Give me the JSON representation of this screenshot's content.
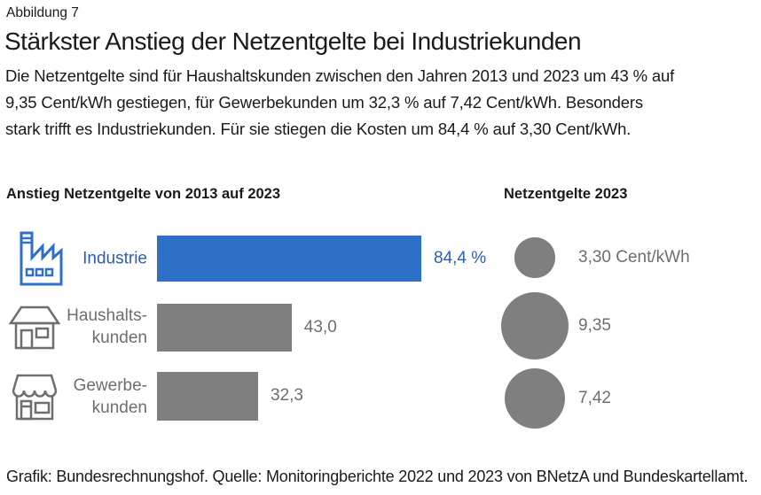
{
  "figure_label": "Abbildung 7",
  "title": "Stärkster Anstieg der Netzentgelte bei Industriekunden",
  "subtitle_lines": [
    "Die Netzentgelte sind für Haushaltskunden zwischen den Jahren 2013 und 2023 um 43 % auf",
    "9,35 Cent/kWh gestiegen, für Gewerbekunden um 32,3 % auf 7,42 Cent/kWh. Besonders",
    "stark trifft es Industriekunden. Für sie stiegen die Kosten um 84,4 % auf 3,30 Cent/kWh."
  ],
  "sections": {
    "bar_chart_title": "Anstieg Netzentgelte von 2013 auf 2023",
    "bubble_chart_title": "Netzentgelte 2023"
  },
  "rows": [
    {
      "icon": "factory-icon",
      "label1": "Industrie",
      "label2": "",
      "value_label": "84,4 %",
      "circle_label": "3,30 Cent/kWh"
    },
    {
      "icon": "house-icon",
      "label1": "Haushalts-",
      "label2": "kunden",
      "value_label": "43,0",
      "circle_label": "9,35"
    },
    {
      "icon": "shop-icon",
      "label1": "Gewerbe-",
      "label2": "kunden",
      "value_label": "32,3",
      "circle_label": "7,42"
    }
  ],
  "footer": "Grafik: Bundesrechnungshof. Quelle: Monitoringberichte 2022 und 2023 von BNetzA und Bundeskartellamt.",
  "colors": {
    "accent_blue": "#2e6fc7",
    "accent_blue_text": "#2a5db5",
    "gray": "#7f7f7f",
    "gray_text": "#6e6e6e",
    "text": "#1a1a1a"
  },
  "chart_data": [
    {
      "type": "bar",
      "title": "Anstieg Netzentgelte von 2013 auf 2023",
      "orientation": "horizontal",
      "unit": "%",
      "categories": [
        "Industrie",
        "Haushaltskunden",
        "Gewerbekunden"
      ],
      "values": [
        84.4,
        43.0,
        32.3
      ],
      "value_labels": [
        "84,4 %",
        "43,0",
        "32,3"
      ],
      "highlight_category": "Industrie",
      "bar_colors": [
        "#2e6fc7",
        "#7f7f7f",
        "#7f7f7f"
      ],
      "grid": false,
      "axis_labels_shown": false
    },
    {
      "type": "bubble",
      "title": "Netzentgelte 2023",
      "unit": "Cent/kWh",
      "categories": [
        "Industrie",
        "Haushaltskunden",
        "Gewerbekunden"
      ],
      "values": [
        3.3,
        9.35,
        7.42
      ],
      "value_labels": [
        "3,30 Cent/kWh",
        "9,35",
        "7,42"
      ],
      "area_proportional": true,
      "bubble_color": "#7f7f7f"
    }
  ]
}
